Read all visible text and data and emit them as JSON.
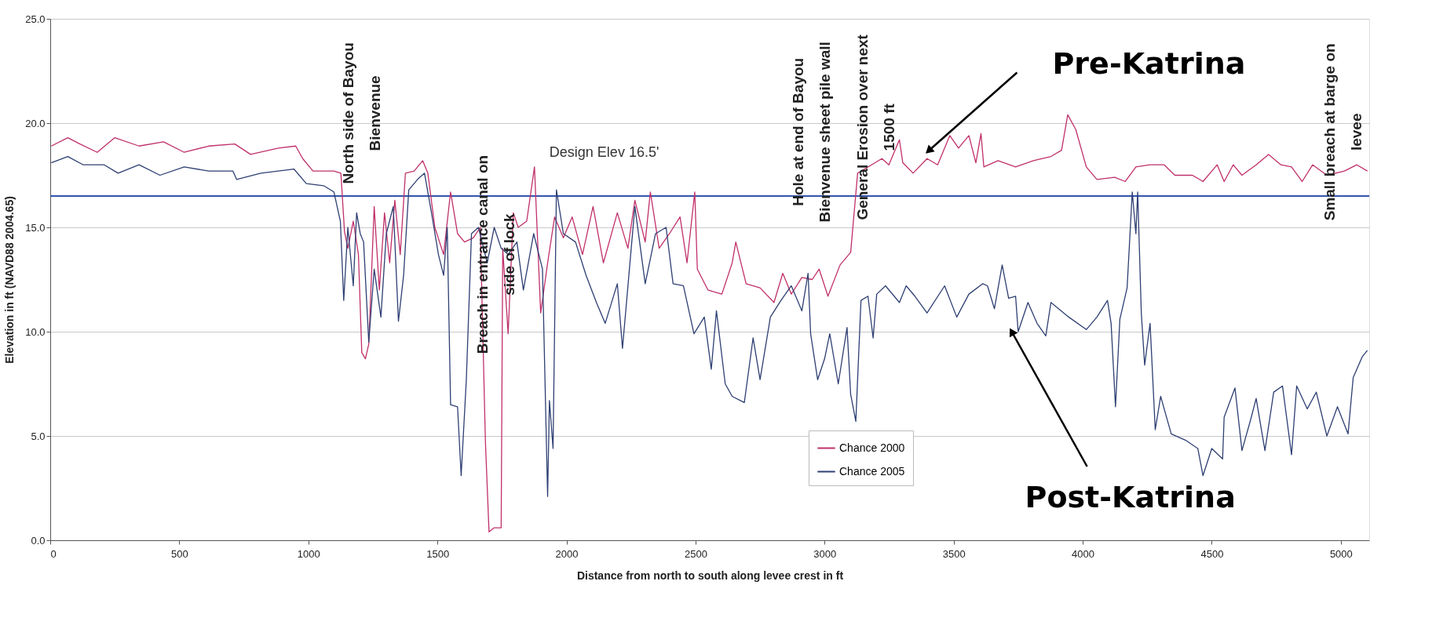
{
  "chart_data": {
    "type": "line",
    "xlabel": "Distance from north to south along levee crest in ft",
    "ylabel": "Elevation in ft (NAVD88 2004.65)",
    "xlim": [
      0,
      5110
    ],
    "ylim": [
      0,
      25
    ],
    "xticks": [
      0,
      500,
      {
        "value": 1000,
        "label": "1000"
      },
      {
        "value": 1500,
        "label": "1500"
      },
      {
        "value": 2000,
        "label": "2000"
      },
      {
        "value": 2500,
        "label": "2500"
      },
      {
        "value": 3000,
        "label": "3000"
      },
      {
        "value": 3500,
        "label": "3500"
      },
      {
        "value": 4000,
        "label": "4000"
      },
      {
        "value": 4500,
        "label": "4500"
      },
      {
        "value": 5000,
        "label": "5000"
      }
    ],
    "yticks": [
      {
        "value": 0,
        "label": "0.0"
      },
      {
        "value": 5,
        "label": "5.0"
      },
      {
        "value": 10,
        "label": "10.0"
      },
      {
        "value": 15,
        "label": "15.0"
      },
      {
        "value": 20,
        "label": "20.0"
      },
      {
        "value": 25,
        "label": "25.0"
      }
    ],
    "grid": "y",
    "legend": "bottom",
    "ref_lines": [
      {
        "axis": "y",
        "value": 16.5,
        "label": "Design Elev 16.5'",
        "color": "#3355aa"
      }
    ],
    "annotations": [
      "North side of Bayou\nBienvenue",
      {
        "text": "Breach in entrance canal on\nside of lock",
        "x": 1677,
        "y": 13.7
      },
      "Hole at end of Bayou\nBienvenue sheet pile wall",
      "General Erosion over next\n1500 ft",
      "Small breach at barge on\nlevee",
      "Pre-Katrina",
      {
        "text": "Post-Katrina",
        "x": 3725,
        "y": 10.0
      }
    ],
    "series": [
      {
        "name": "Chance 2000",
        "color": "#c0306a",
        "x": [
          4,
          68,
          115,
          182,
          250,
          344,
          439,
          519,
          614,
          715,
          776,
          884,
          951,
          978,
          1018,
          1099,
          1126,
          1140,
          1153,
          1174,
          1194,
          1207,
          1221,
          1234,
          1255,
          1275,
          1295,
          1315,
          1335,
          1356,
          1376,
          1410,
          1443,
          1463,
          1490,
          1524,
          1551,
          1578,
          1605,
          1639,
          1666,
          1686,
          1700,
          1720,
          1747,
          1753,
          1774,
          1794,
          1813,
          1846,
          1876,
          1900,
          1927,
          1954,
          1988,
          2022,
          2062,
          2103,
          2143,
          2197,
          2238,
          2265,
          2305,
          2325,
          2359,
          2399,
          2440,
          2467,
          2497,
          2507,
          2548,
          2602,
          2642,
          2656,
          2696,
          2750,
          2804,
          2838,
          2871,
          2912,
          2952,
          2979,
          3013,
          3060,
          3101,
          3128,
          3182,
          3222,
          3249,
          3290,
          3303,
          3343,
          3397,
          3438,
          3485,
          3519,
          3559,
          3586,
          3606,
          3617,
          3672,
          3740,
          3809,
          3877,
          3918,
          3942,
          3973,
          4014,
          4055,
          4124,
          4165,
          4206,
          4261,
          4316,
          4357,
          4425,
          4466,
          4521,
          4548,
          4583,
          4617,
          4672,
          4720,
          4768,
          4809,
          4850,
          4891,
          4946,
          5014,
          5062,
          5103
        ],
        "values": [
          18.9,
          19.3,
          19.0,
          18.6,
          19.3,
          18.9,
          19.1,
          18.6,
          18.9,
          19.0,
          18.5,
          18.8,
          18.9,
          18.3,
          17.7,
          17.7,
          17.6,
          14.8,
          14.0,
          15.3,
          13.7,
          9.0,
          8.7,
          9.4,
          16.0,
          12.0,
          15.7,
          13.3,
          16.3,
          13.7,
          17.6,
          17.7,
          18.2,
          17.6,
          15.0,
          13.7,
          16.7,
          14.7,
          14.3,
          14.5,
          15.0,
          4.7,
          0.4,
          0.6,
          0.6,
          14.0,
          9.9,
          15.7,
          15.0,
          15.3,
          17.9,
          10.9,
          13.3,
          15.5,
          14.5,
          15.5,
          13.7,
          16.0,
          13.3,
          15.7,
          14.0,
          16.3,
          14.3,
          16.7,
          14.0,
          14.7,
          15.5,
          13.3,
          16.7,
          13.0,
          12.0,
          11.8,
          13.3,
          14.3,
          12.3,
          12.1,
          11.4,
          12.8,
          11.8,
          12.6,
          12.5,
          13.0,
          11.7,
          13.2,
          13.8,
          17.6,
          18.0,
          18.3,
          18.0,
          19.2,
          18.1,
          17.6,
          18.3,
          18.0,
          19.4,
          18.8,
          19.4,
          18.1,
          19.5,
          17.9,
          18.2,
          17.9,
          18.2,
          18.4,
          18.7,
          20.4,
          19.7,
          17.9,
          17.3,
          17.4,
          17.2,
          17.9,
          18.0,
          18.0,
          17.5,
          17.5,
          17.2,
          18.0,
          17.2,
          18.0,
          17.5,
          18.0,
          18.5,
          18.0,
          17.9,
          17.2,
          18.0,
          17.5,
          17.7,
          18.0,
          17.7
        ]
      },
      {
        "name": "Chance 2005",
        "color": "#2e3f73",
        "x": [
          4,
          68,
          128,
          209,
          263,
          344,
          425,
          519,
          614,
          708,
          722,
          816,
          944,
          992,
          1059,
          1099,
          1124,
          1137,
          1153,
          1174,
          1187,
          1201,
          1214,
          1234,
          1255,
          1281,
          1302,
          1329,
          1349,
          1369,
          1389,
          1423,
          1450,
          1477,
          1504,
          1524,
          1538,
          1551,
          1578,
          1592,
          1612,
          1632,
          1659,
          1693,
          1720,
          1747,
          1774,
          1808,
          1833,
          1873,
          1907,
          1927,
          1934,
          1948,
          1961,
          1988,
          2035,
          2076,
          2116,
          2150,
          2197,
          2217,
          2265,
          2305,
          2345,
          2386,
          2413,
          2453,
          2494,
          2534,
          2561,
          2581,
          2615,
          2642,
          2689,
          2723,
          2750,
          2790,
          2831,
          2871,
          2912,
          2936,
          2946,
          2973,
          3000,
          3020,
          3053,
          3087,
          3101,
          3121,
          3141,
          3168,
          3188,
          3202,
          3236,
          3290,
          3316,
          3350,
          3397,
          3465,
          3512,
          3559,
          3613,
          3631,
          3658,
          3688,
          3713,
          3740,
          3750,
          3788,
          3823,
          3857,
          3877,
          3946,
          4014,
          4055,
          4096,
          4110,
          4127,
          4144,
          4172,
          4192,
          4206,
          4213,
          4227,
          4240,
          4261,
          4281,
          4302,
          4343,
          4398,
          4446,
          4466,
          4500,
          4542,
          4548,
          4590,
          4617,
          4651,
          4672,
          4706,
          4740,
          4774,
          4809,
          4829,
          4870,
          4905,
          4946,
          4987,
          5028,
          5048,
          5083,
          5103
        ],
        "values": [
          18.1,
          18.4,
          18.0,
          18.0,
          17.6,
          18.0,
          17.5,
          17.9,
          17.7,
          17.7,
          17.3,
          17.6,
          17.8,
          17.1,
          17.0,
          16.7,
          15.3,
          11.5,
          15.0,
          12.2,
          15.7,
          14.7,
          14.3,
          9.5,
          13.0,
          10.7,
          14.7,
          16.0,
          10.5,
          12.7,
          16.8,
          17.3,
          17.6,
          15.7,
          13.7,
          12.7,
          15.0,
          6.5,
          6.4,
          3.1,
          7.7,
          14.7,
          15.0,
          13.3,
          15.0,
          14.0,
          13.7,
          14.3,
          12.0,
          14.7,
          13.0,
          2.1,
          6.7,
          4.4,
          16.8,
          14.7,
          14.3,
          12.7,
          11.4,
          10.4,
          12.3,
          9.2,
          16.0,
          12.3,
          14.7,
          15.0,
          12.3,
          12.2,
          9.9,
          10.7,
          8.2,
          11.0,
          7.5,
          6.9,
          6.6,
          9.7,
          7.7,
          10.7,
          11.5,
          12.2,
          11.0,
          12.8,
          9.9,
          7.7,
          8.7,
          9.9,
          7.5,
          10.2,
          7.0,
          5.7,
          11.5,
          11.7,
          9.7,
          11.8,
          12.2,
          11.4,
          12.2,
          11.7,
          10.9,
          12.2,
          10.7,
          11.8,
          12.3,
          12.2,
          11.1,
          13.2,
          11.6,
          11.7,
          10.0,
          11.4,
          10.4,
          9.8,
          11.4,
          10.7,
          10.1,
          10.7,
          11.5,
          10.4,
          6.4,
          10.6,
          12.1,
          16.7,
          14.7,
          16.7,
          10.9,
          8.4,
          10.4,
          5.3,
          6.9,
          5.1,
          4.8,
          4.4,
          3.1,
          4.4,
          3.9,
          5.9,
          7.3,
          4.3,
          5.8,
          6.8,
          4.3,
          7.1,
          7.4,
          4.1,
          7.4,
          6.3,
          7.1,
          5.0,
          6.4,
          5.1,
          7.8,
          8.8,
          9.1
        ]
      }
    ]
  }
}
